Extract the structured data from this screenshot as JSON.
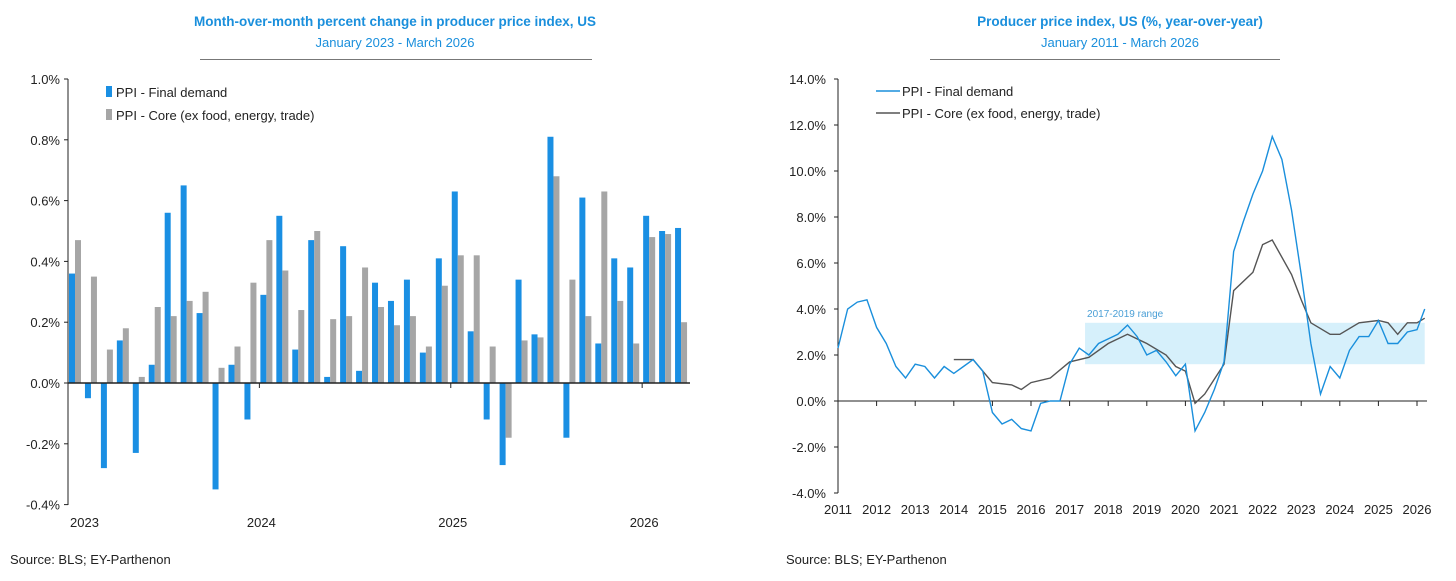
{
  "chart_data": [
    {
      "type": "bar",
      "title": "Month-over-month percent change in producer price index, US",
      "subtitle": "January 2023 - March 2026",
      "ylim": [
        -0.4,
        1.0
      ],
      "yticks": [
        "-0.4%",
        "-0.2%",
        "0.0%",
        "0.2%",
        "0.4%",
        "0.6%",
        "0.8%",
        "1.0%"
      ],
      "ytick_values": [
        -0.4,
        -0.2,
        0,
        0.2,
        0.4,
        0.6,
        0.8,
        1.0
      ],
      "xtick_labels": [
        "2023",
        "2024",
        "2025",
        "2026"
      ],
      "legend": "top-left",
      "source": "Source: BLS; EY-Parthenon",
      "series": [
        {
          "name": "PPI - Final demand",
          "color": "#1a8fe3",
          "values": [
            0.36,
            -0.05,
            -0.28,
            0.14,
            -0.23,
            0.06,
            0.56,
            0.65,
            0.23,
            -0.35,
            0.06,
            -0.12,
            0.29,
            0.55,
            0.11,
            0.47,
            0.02,
            0.45,
            0.04,
            0.33,
            0.27,
            0.34,
            0.1,
            0.41,
            0.63,
            0.17,
            -0.12,
            -0.27,
            0.34,
            0.16,
            0.81,
            -0.18,
            0.61,
            0.13,
            0.41,
            0.38,
            0.55,
            0.5,
            0.51
          ]
        },
        {
          "name": "PPI - Core (ex food, energy, trade)",
          "color": "#a6a6a6",
          "values": [
            0.47,
            0.35,
            0.11,
            0.18,
            0.02,
            0.25,
            0.22,
            0.27,
            0.3,
            0.05,
            0.12,
            0.33,
            0.47,
            0.37,
            0.24,
            0.5,
            0.21,
            0.22,
            0.38,
            0.25,
            0.19,
            0.22,
            0.12,
            0.32,
            0.42,
            0.42,
            0.12,
            -0.18,
            0.14,
            0.15,
            0.68,
            0.34,
            0.22,
            0.63,
            0.27,
            0.13,
            0.48,
            0.49,
            0.2
          ]
        }
      ]
    },
    {
      "type": "line",
      "title": "Producer price index, US (%,  year-over-year)",
      "subtitle": "January 2011 - March 2026",
      "ylim": [
        -4,
        14
      ],
      "yticks": [
        "-4.0%",
        "-2.0%",
        "0.0%",
        "2.0%",
        "4.0%",
        "6.0%",
        "8.0%",
        "10.0%",
        "12.0%",
        "14.0%"
      ],
      "ytick_values": [
        -4,
        -2,
        0,
        2,
        4,
        6,
        8,
        10,
        12,
        14
      ],
      "xtick_labels": [
        "2011",
        "2012",
        "2013",
        "2014",
        "2015",
        "2016",
        "2017",
        "2018",
        "2019",
        "2020",
        "2021",
        "2022",
        "2023",
        "2024",
        "2025",
        "2026"
      ],
      "legend": "top-left",
      "source": "Source: BLS; EY-Parthenon",
      "band": {
        "label": "2017-2019 range",
        "low": 1.6,
        "high": 3.4,
        "x_start": 2017.4,
        "x_end": 2026.2,
        "color": "#d6f0fb"
      },
      "series": [
        {
          "name": "PPI - Final demand",
          "color": "#1a8fdc",
          "x": [
            2011,
            2011.25,
            2011.5,
            2011.75,
            2012,
            2012.25,
            2012.5,
            2012.75,
            2013,
            2013.25,
            2013.5,
            2013.75,
            2014,
            2014.25,
            2014.5,
            2014.75,
            2015,
            2015.25,
            2015.5,
            2015.75,
            2016,
            2016.25,
            2016.5,
            2016.75,
            2017,
            2017.25,
            2017.5,
            2017.75,
            2018,
            2018.25,
            2018.5,
            2018.75,
            2019,
            2019.25,
            2019.5,
            2019.75,
            2020,
            2020.25,
            2020.5,
            2020.75,
            2021,
            2021.25,
            2021.5,
            2021.75,
            2022,
            2022.25,
            2022.5,
            2022.75,
            2023,
            2023.25,
            2023.5,
            2023.75,
            2024,
            2024.25,
            2024.5,
            2024.75,
            2025,
            2025.25,
            2025.5,
            2025.75,
            2026,
            2026.2
          ],
          "values": [
            2.3,
            4.0,
            4.3,
            4.4,
            3.2,
            2.5,
            1.5,
            1.0,
            1.6,
            1.5,
            1.0,
            1.5,
            1.2,
            1.5,
            1.8,
            1.3,
            -0.5,
            -1.0,
            -0.8,
            -1.2,
            -1.3,
            -0.1,
            0.0,
            0.0,
            1.6,
            2.3,
            2.0,
            2.5,
            2.7,
            2.9,
            3.3,
            2.8,
            2.0,
            2.2,
            1.7,
            1.1,
            1.6,
            -1.3,
            -0.5,
            0.5,
            1.7,
            6.5,
            7.8,
            9.0,
            10.0,
            11.5,
            10.5,
            8.3,
            5.5,
            2.5,
            0.3,
            1.5,
            1.0,
            2.2,
            2.8,
            2.8,
            3.5,
            2.5,
            2.5,
            3.0,
            3.1,
            4.0
          ]
        },
        {
          "name": "PPI - Core (ex food, energy, trade)",
          "color": "#555555",
          "x": [
            2014,
            2014.5,
            2015,
            2015.5,
            2015.75,
            2016,
            2016.5,
            2017,
            2017.5,
            2018,
            2018.5,
            2019,
            2019.5,
            2019.75,
            2020,
            2020.25,
            2020.5,
            2021,
            2021.25,
            2021.75,
            2022,
            2022.25,
            2022.75,
            2023,
            2023.25,
            2023.75,
            2024,
            2024.5,
            2025,
            2025.25,
            2025.5,
            2025.75,
            2026,
            2026.2
          ],
          "values": [
            1.8,
            1.8,
            0.8,
            0.7,
            0.5,
            0.8,
            1.0,
            1.7,
            1.9,
            2.5,
            2.9,
            2.5,
            2.0,
            1.5,
            1.3,
            -0.1,
            0.3,
            1.6,
            4.8,
            5.6,
            6.8,
            7.0,
            5.5,
            4.4,
            3.4,
            2.9,
            2.9,
            3.4,
            3.5,
            3.4,
            2.9,
            3.4,
            3.4,
            3.6
          ]
        }
      ]
    }
  ]
}
